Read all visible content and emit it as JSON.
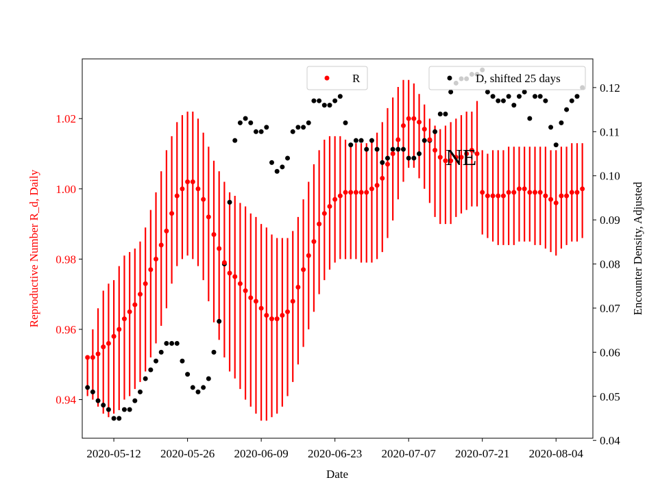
{
  "chart_data": {
    "type": "scatter",
    "xlabel": "Date",
    "ylabel_left": "Reproductive Number R_d, Daily",
    "ylabel_right": "Encounter Density, Adjusted",
    "annotation": "NE",
    "colors": {
      "r_series": "#ff0000",
      "d_series": "#000000"
    },
    "grid": false,
    "x_ticks": [
      "2020-05-12",
      "2020-05-26",
      "2020-06-09",
      "2020-06-23",
      "2020-07-07",
      "2020-07-21",
      "2020-08-04"
    ],
    "x_range": [
      "2020-05-06",
      "2020-08-11"
    ],
    "ylim_left": [
      0.929,
      1.037
    ],
    "yticks_left": [
      "0.94",
      "0.96",
      "0.98",
      "1.00",
      "1.02"
    ],
    "ylim_right": [
      0.0405,
      0.1265
    ],
    "yticks_right": [
      "0.04",
      "0.05",
      "0.06",
      "0.07",
      "0.08",
      "0.09",
      "0.10",
      "0.11",
      "0.12"
    ],
    "legend": [
      {
        "label": "R",
        "location": "upper center"
      },
      {
        "label": "D, shifted 25 days",
        "location": "upper right"
      }
    ],
    "series": [
      {
        "name": "R",
        "axis": "left",
        "x": [
          "2020-05-07",
          "2020-05-08",
          "2020-05-09",
          "2020-05-10",
          "2020-05-11",
          "2020-05-12",
          "2020-05-13",
          "2020-05-14",
          "2020-05-15",
          "2020-05-16",
          "2020-05-17",
          "2020-05-18",
          "2020-05-19",
          "2020-05-20",
          "2020-05-21",
          "2020-05-22",
          "2020-05-23",
          "2020-05-24",
          "2020-05-25",
          "2020-05-26",
          "2020-05-27",
          "2020-05-28",
          "2020-05-29",
          "2020-05-30",
          "2020-05-31",
          "2020-06-01",
          "2020-06-02",
          "2020-06-03",
          "2020-06-04",
          "2020-06-05",
          "2020-06-06",
          "2020-06-07",
          "2020-06-08",
          "2020-06-09",
          "2020-06-10",
          "2020-06-11",
          "2020-06-12",
          "2020-06-13",
          "2020-06-14",
          "2020-06-15",
          "2020-06-16",
          "2020-06-17",
          "2020-06-18",
          "2020-06-19",
          "2020-06-20",
          "2020-06-21",
          "2020-06-22",
          "2020-06-23",
          "2020-06-24",
          "2020-06-25",
          "2020-06-26",
          "2020-06-27",
          "2020-06-28",
          "2020-06-29",
          "2020-06-30",
          "2020-07-01",
          "2020-07-02",
          "2020-07-03",
          "2020-07-04",
          "2020-07-05",
          "2020-07-06",
          "2020-07-07",
          "2020-07-08",
          "2020-07-09",
          "2020-07-10",
          "2020-07-11",
          "2020-07-12",
          "2020-07-13",
          "2020-07-14",
          "2020-07-15",
          "2020-07-16",
          "2020-07-17",
          "2020-07-18",
          "2020-07-19",
          "2020-07-20",
          "2020-07-21",
          "2020-07-22",
          "2020-07-23",
          "2020-07-24",
          "2020-07-25",
          "2020-07-26",
          "2020-07-27",
          "2020-07-28",
          "2020-07-29",
          "2020-07-30",
          "2020-07-31",
          "2020-08-01",
          "2020-08-02",
          "2020-08-03",
          "2020-08-04",
          "2020-08-05",
          "2020-08-06",
          "2020-08-07",
          "2020-08-08",
          "2020-08-09"
        ],
        "y": [
          0.952,
          0.952,
          0.953,
          0.955,
          0.956,
          0.958,
          0.96,
          0.963,
          0.965,
          0.967,
          0.97,
          0.973,
          0.977,
          0.98,
          0.984,
          0.988,
          0.993,
          0.998,
          1.0,
          1.002,
          1.002,
          1.0,
          0.997,
          0.992,
          0.987,
          0.983,
          0.979,
          0.976,
          0.975,
          0.973,
          0.971,
          0.969,
          0.968,
          0.966,
          0.964,
          0.963,
          0.963,
          0.964,
          0.965,
          0.968,
          0.972,
          0.977,
          0.981,
          0.985,
          0.99,
          0.993,
          0.995,
          0.997,
          0.998,
          0.999,
          0.999,
          0.999,
          0.999,
          0.999,
          1.0,
          1.001,
          1.003,
          1.007,
          1.01,
          1.014,
          1.018,
          1.02,
          1.02,
          1.019,
          1.017,
          1.014,
          1.011,
          1.009,
          1.008,
          1.008,
          1.009,
          1.009,
          1.01,
          1.011,
          1.01,
          0.999,
          0.998,
          0.998,
          0.998,
          0.998,
          0.999,
          0.999,
          1.0,
          1.0,
          0.999,
          0.999,
          0.999,
          0.998,
          0.997,
          0.996,
          0.998,
          0.998,
          0.999,
          0.999,
          1.0
        ],
        "err_low": [
          0.941,
          0.94,
          0.938,
          0.936,
          0.935,
          0.936,
          0.937,
          0.94,
          0.941,
          0.943,
          0.945,
          0.948,
          0.952,
          0.956,
          0.961,
          0.966,
          0.973,
          0.978,
          0.98,
          0.981,
          0.98,
          0.978,
          0.974,
          0.968,
          0.962,
          0.957,
          0.952,
          0.948,
          0.946,
          0.943,
          0.94,
          0.938,
          0.936,
          0.934,
          0.934,
          0.935,
          0.936,
          0.938,
          0.941,
          0.945,
          0.95,
          0.955,
          0.96,
          0.965,
          0.97,
          0.974,
          0.977,
          0.979,
          0.98,
          0.98,
          0.98,
          0.98,
          0.979,
          0.979,
          0.979,
          0.98,
          0.982,
          0.986,
          0.991,
          0.997,
          1.002,
          1.006,
          1.006,
          1.003,
          1.0,
          0.996,
          0.992,
          0.99,
          0.99,
          0.99,
          0.992,
          0.993,
          0.994,
          0.995,
          0.995,
          0.987,
          0.986,
          0.985,
          0.984,
          0.984,
          0.984,
          0.984,
          0.985,
          0.985,
          0.985,
          0.984,
          0.984,
          0.983,
          0.982,
          0.981,
          0.983,
          0.984,
          0.985,
          0.985,
          0.986
        ],
        "err_high": [
          0.952,
          0.96,
          0.966,
          0.971,
          0.973,
          0.974,
          0.978,
          0.981,
          0.982,
          0.983,
          0.985,
          0.989,
          0.994,
          0.999,
          1.005,
          1.011,
          1.015,
          1.019,
          1.021,
          1.022,
          1.022,
          1.02,
          1.016,
          1.012,
          1.008,
          1.005,
          1.002,
          0.999,
          0.998,
          0.996,
          0.995,
          0.993,
          0.992,
          0.99,
          0.989,
          0.987,
          0.986,
          0.986,
          0.986,
          0.988,
          0.992,
          0.997,
          1.002,
          1.007,
          1.011,
          1.014,
          1.015,
          1.015,
          1.015,
          1.014,
          1.013,
          1.013,
          1.013,
          1.013,
          1.014,
          1.016,
          1.019,
          1.023,
          1.026,
          1.029,
          1.031,
          1.031,
          1.03,
          1.027,
          1.024,
          1.02,
          1.018,
          1.017,
          1.018,
          1.019,
          1.02,
          1.021,
          1.022,
          1.022,
          1.025,
          1.011,
          1.01,
          1.011,
          1.011,
          1.011,
          1.012,
          1.012,
          1.012,
          1.012,
          1.012,
          1.012,
          1.012,
          1.012,
          1.011,
          1.011,
          1.012,
          1.012,
          1.013,
          1.013,
          1.013
        ]
      },
      {
        "name": "D, shifted 25 days",
        "axis": "right",
        "x": [
          "2020-05-07",
          "2020-05-08",
          "2020-05-09",
          "2020-05-10",
          "2020-05-11",
          "2020-05-12",
          "2020-05-13",
          "2020-05-14",
          "2020-05-15",
          "2020-05-16",
          "2020-05-17",
          "2020-05-18",
          "2020-05-19",
          "2020-05-20",
          "2020-05-21",
          "2020-05-22",
          "2020-05-23",
          "2020-05-24",
          "2020-05-25",
          "2020-05-26",
          "2020-05-27",
          "2020-05-28",
          "2020-05-29",
          "2020-05-30",
          "2020-05-31",
          "2020-06-01",
          "2020-06-02",
          "2020-06-03",
          "2020-06-04",
          "2020-06-05",
          "2020-06-06",
          "2020-06-07",
          "2020-06-08",
          "2020-06-09",
          "2020-06-10",
          "2020-06-11",
          "2020-06-12",
          "2020-06-13",
          "2020-06-14",
          "2020-06-15",
          "2020-06-16",
          "2020-06-17",
          "2020-06-18",
          "2020-06-19",
          "2020-06-20",
          "2020-06-21",
          "2020-06-22",
          "2020-06-23",
          "2020-06-24",
          "2020-06-25",
          "2020-06-26",
          "2020-06-27",
          "2020-06-28",
          "2020-06-29",
          "2020-06-30",
          "2020-07-01",
          "2020-07-02",
          "2020-07-03",
          "2020-07-04",
          "2020-07-05",
          "2020-07-06",
          "2020-07-07",
          "2020-07-08",
          "2020-07-09",
          "2020-07-10",
          "2020-07-11",
          "2020-07-12",
          "2020-07-13",
          "2020-07-14",
          "2020-07-15",
          "2020-07-16",
          "2020-07-17",
          "2020-07-18",
          "2020-07-19",
          "2020-07-20",
          "2020-07-21",
          "2020-07-22",
          "2020-07-23",
          "2020-07-24",
          "2020-07-25",
          "2020-07-26",
          "2020-07-27",
          "2020-07-28",
          "2020-07-29",
          "2020-07-30",
          "2020-07-31",
          "2020-08-01",
          "2020-08-02",
          "2020-08-03",
          "2020-08-04",
          "2020-08-05",
          "2020-08-06",
          "2020-08-07",
          "2020-08-08",
          "2020-08-09"
        ],
        "y": [
          0.052,
          0.051,
          0.049,
          0.048,
          0.047,
          0.045,
          0.045,
          0.047,
          0.047,
          0.049,
          0.051,
          0.054,
          0.056,
          0.058,
          0.06,
          0.062,
          0.062,
          0.062,
          0.058,
          0.055,
          0.052,
          0.051,
          0.052,
          0.054,
          0.06,
          0.067,
          0.08,
          0.094,
          0.108,
          0.112,
          0.113,
          0.112,
          0.11,
          0.11,
          0.111,
          0.103,
          0.101,
          0.102,
          0.104,
          0.11,
          0.111,
          0.111,
          0.112,
          0.117,
          0.117,
          0.116,
          0.116,
          0.117,
          0.118,
          0.112,
          0.107,
          0.108,
          0.108,
          0.106,
          0.108,
          0.106,
          0.103,
          0.104,
          0.106,
          0.106,
          0.106,
          0.104,
          0.104,
          0.105,
          0.108,
          0.108,
          0.11,
          0.114,
          0.114,
          0.119,
          0.121,
          0.122,
          0.122,
          0.123,
          0.123,
          0.124,
          0.119,
          0.118,
          0.117,
          0.117,
          0.118,
          0.116,
          0.118,
          0.119,
          0.113,
          0.118,
          0.118,
          0.117,
          0.111,
          0.107,
          0.112,
          0.115,
          0.117,
          0.118,
          0.12
        ]
      }
    ]
  }
}
